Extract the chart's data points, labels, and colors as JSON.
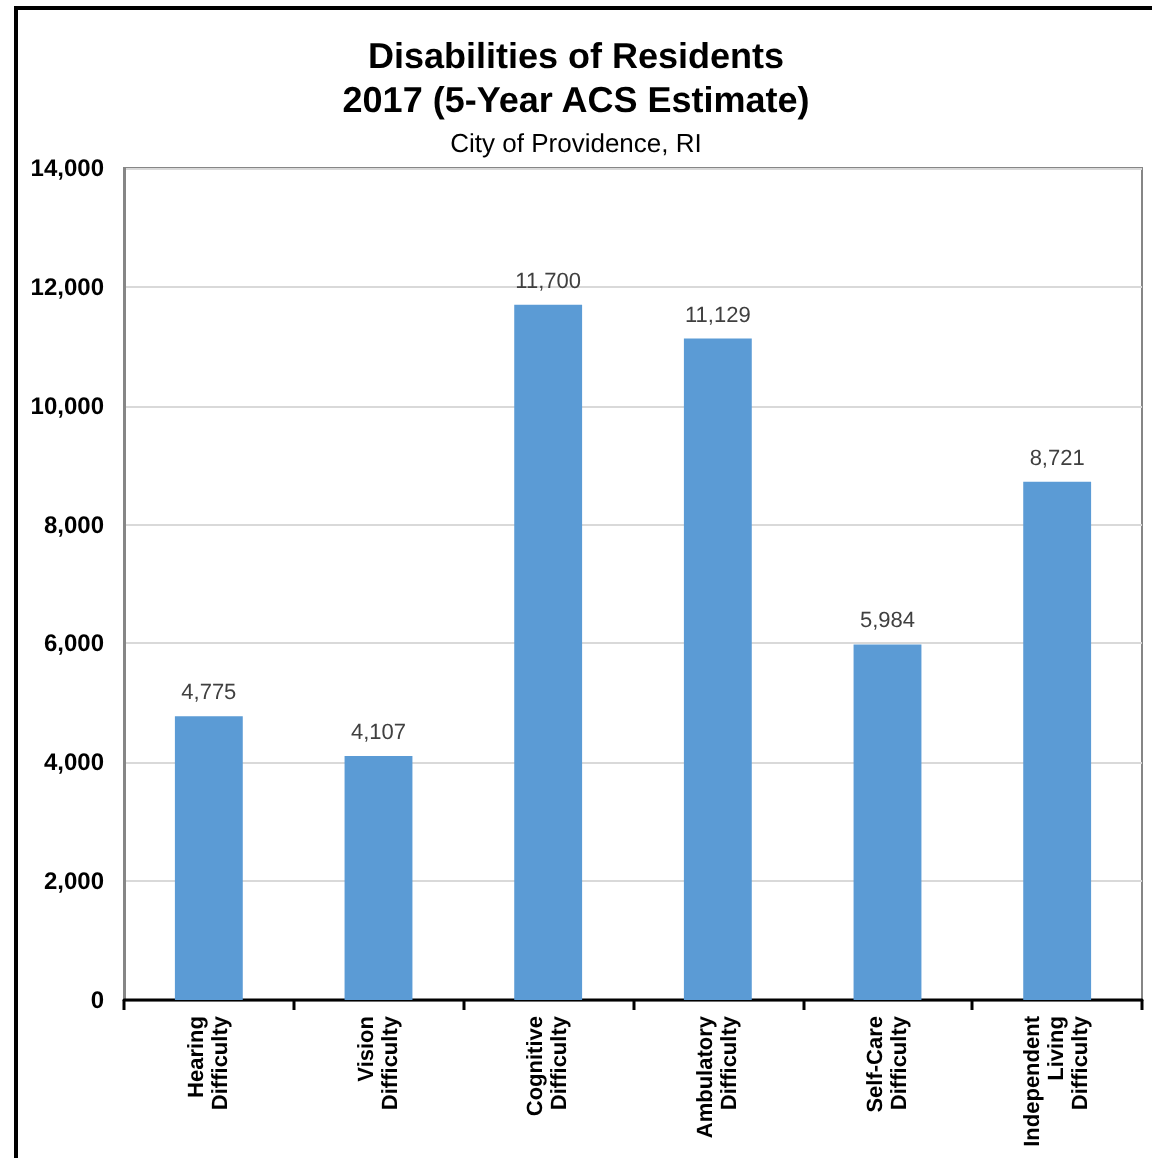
{
  "chart_data": {
    "type": "bar",
    "title": "Disabilities of Residents\n2017 (5-Year ACS Estimate)",
    "subtitle": "City of Providence, RI",
    "categories": [
      "Hearing Difficulty",
      "Vision Difficulty",
      "Cognitive Difficulty",
      "Ambulatory Difficulty",
      "Self-Care Difficulty",
      "Independent Living Difficulty"
    ],
    "values": [
      4775,
      4107,
      11700,
      11129,
      5984,
      8721
    ],
    "value_labels": [
      "4,775",
      "4,107",
      "11,700",
      "11,129",
      "5,984",
      "8,721"
    ],
    "color": "#5b9bd5",
    "ylim": [
      0,
      14000
    ],
    "yticks": [
      0,
      {
        "value": 2000,
        "label": "2,000"
      },
      {
        "value": 4000,
        "label": "4,000"
      },
      {
        "value": 6000,
        "label": "6,000"
      },
      {
        "value": 8000,
        "label": "8,000"
      },
      {
        "value": 10000,
        "label": "10,000"
      },
      {
        "value": 12000,
        "label": "12,000"
      },
      {
        "value": 14000,
        "label": "14,000"
      }
    ],
    "grid": "y"
  }
}
